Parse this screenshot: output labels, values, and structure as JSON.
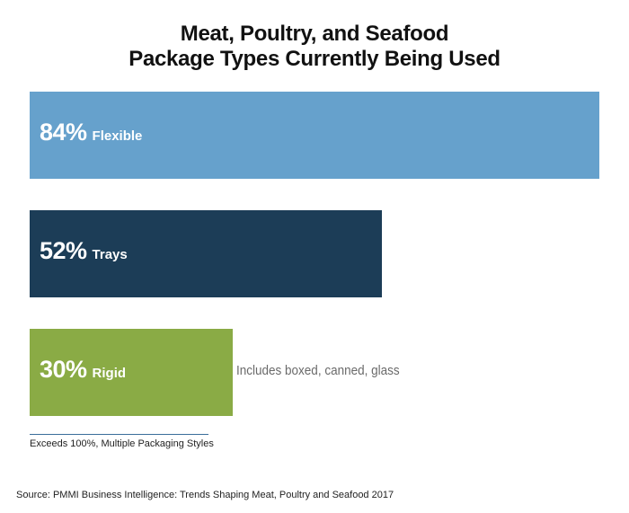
{
  "chart_data": {
    "type": "bar",
    "orientation": "horizontal",
    "title": [
      "Meat, Poultry, and Seafood",
      "Package Types Currently Being Used"
    ],
    "categories": [
      "Flexible",
      "Trays",
      "Rigid"
    ],
    "values": [
      84,
      52,
      30
    ],
    "value_labels": [
      "84%",
      "52%",
      "30%"
    ],
    "colors": [
      "#66a1cc",
      "#1c3d57",
      "#8aab45"
    ],
    "xlim": [
      0,
      84
    ],
    "grid": false,
    "annotations": [
      {
        "category": "Rigid",
        "text": "Includes boxed, canned, glass"
      }
    ],
    "footnote": "Exceeds 100%, Multiple Packaging Styles",
    "source": "Source: PMMI Business Intelligence: Trends Shaping Meat, Poultry and Seafood 2017"
  }
}
